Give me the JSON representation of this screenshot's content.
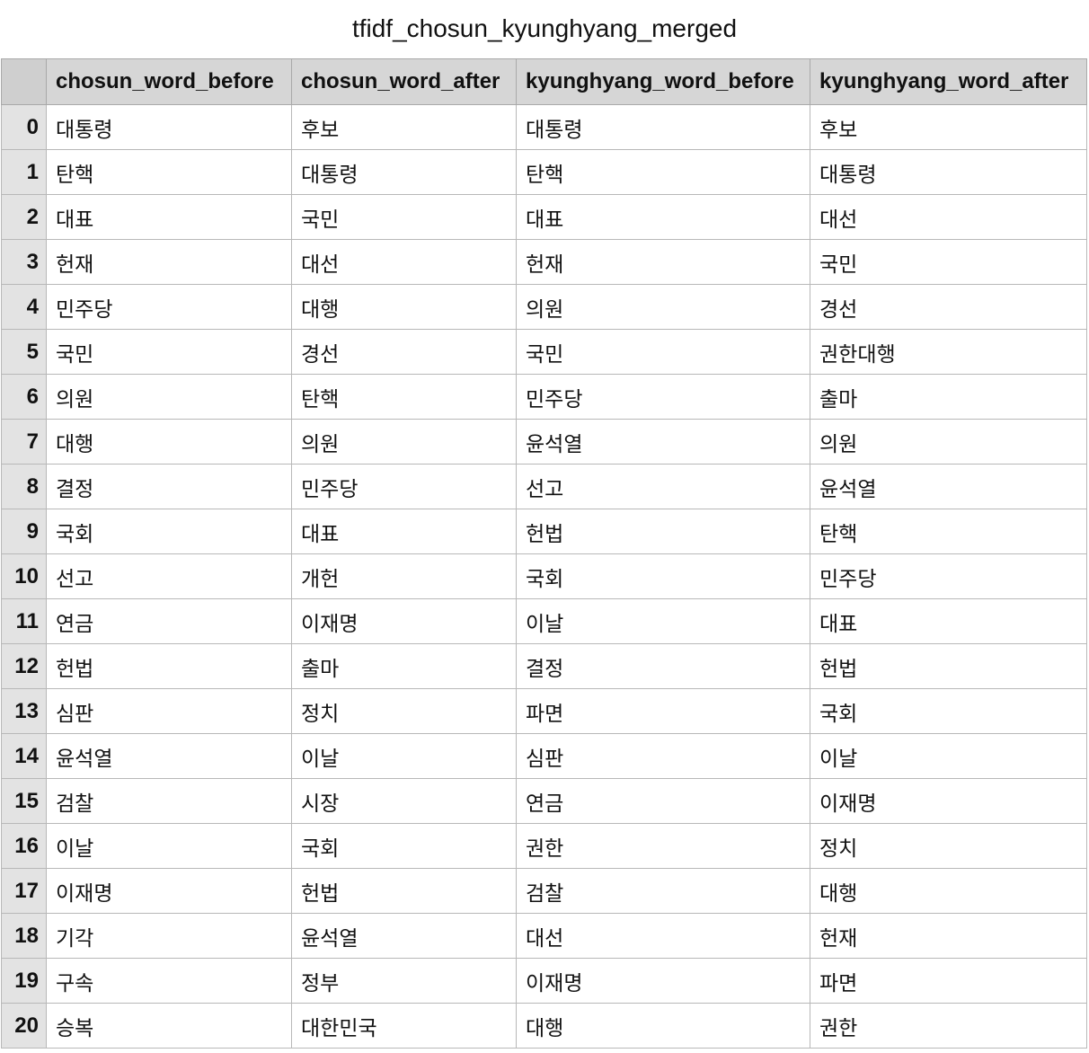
{
  "title": "tfidf_chosun_kyunghyang_merged",
  "table": {
    "columns": [
      "chosun_word_before",
      "chosun_word_after",
      "kyunghyang_word_before",
      "kyunghyang_word_after"
    ],
    "rows": [
      {
        "index": "0",
        "cells": [
          "대통령",
          "후보",
          "대통령",
          "후보"
        ]
      },
      {
        "index": "1",
        "cells": [
          "탄핵",
          "대통령",
          "탄핵",
          "대통령"
        ]
      },
      {
        "index": "2",
        "cells": [
          "대표",
          "국민",
          "대표",
          "대선"
        ]
      },
      {
        "index": "3",
        "cells": [
          "헌재",
          "대선",
          "헌재",
          "국민"
        ]
      },
      {
        "index": "4",
        "cells": [
          "민주당",
          "대행",
          "의원",
          "경선"
        ]
      },
      {
        "index": "5",
        "cells": [
          "국민",
          "경선",
          "국민",
          "권한대행"
        ]
      },
      {
        "index": "6",
        "cells": [
          "의원",
          "탄핵",
          "민주당",
          "출마"
        ]
      },
      {
        "index": "7",
        "cells": [
          "대행",
          "의원",
          "윤석열",
          "의원"
        ]
      },
      {
        "index": "8",
        "cells": [
          "결정",
          "민주당",
          "선고",
          "윤석열"
        ]
      },
      {
        "index": "9",
        "cells": [
          "국회",
          "대표",
          "헌법",
          "탄핵"
        ]
      },
      {
        "index": "10",
        "cells": [
          "선고",
          "개헌",
          "국회",
          "민주당"
        ]
      },
      {
        "index": "11",
        "cells": [
          "연금",
          "이재명",
          "이날",
          "대표"
        ]
      },
      {
        "index": "12",
        "cells": [
          "헌법",
          "출마",
          "결정",
          "헌법"
        ]
      },
      {
        "index": "13",
        "cells": [
          "심판",
          "정치",
          "파면",
          "국회"
        ]
      },
      {
        "index": "14",
        "cells": [
          "윤석열",
          "이날",
          "심판",
          "이날"
        ]
      },
      {
        "index": "15",
        "cells": [
          "검찰",
          "시장",
          "연금",
          "이재명"
        ]
      },
      {
        "index": "16",
        "cells": [
          "이날",
          "국회",
          "권한",
          "정치"
        ]
      },
      {
        "index": "17",
        "cells": [
          "이재명",
          "헌법",
          "검찰",
          "대행"
        ]
      },
      {
        "index": "18",
        "cells": [
          "기각",
          "윤석열",
          "대선",
          "헌재"
        ]
      },
      {
        "index": "19",
        "cells": [
          "구속",
          "정부",
          "이재명",
          "파면"
        ]
      },
      {
        "index": "20",
        "cells": [
          "승복",
          "대한민국",
          "대행",
          "권한"
        ]
      }
    ]
  }
}
